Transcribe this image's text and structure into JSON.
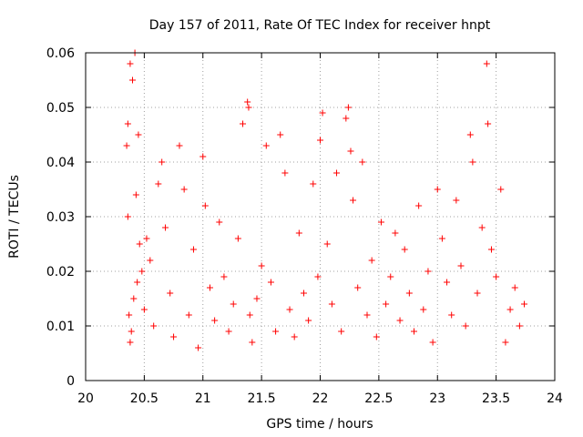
{
  "chart_data": {
    "type": "scatter",
    "title": "Day 157 of 2011, Rate Of TEC Index for receiver hnpt",
    "xlabel": "GPS time / hours",
    "ylabel": "ROTI / TECUs",
    "xlim": [
      20,
      24
    ],
    "ylim": [
      0,
      0.06
    ],
    "x_ticks": [
      20,
      20.5,
      21,
      21.5,
      22,
      22.5,
      23,
      23.5,
      24
    ],
    "x_tick_labels": [
      "20",
      "20.5",
      "21",
      "21.5",
      "22",
      "22.5",
      "23",
      "23.5",
      "24"
    ],
    "y_ticks": [
      0,
      0.01,
      0.02,
      0.03,
      0.04,
      0.05,
      0.06
    ],
    "y_tick_labels": [
      "0",
      "0.01",
      "0.02",
      "0.03",
      "0.04",
      "0.05",
      "0.06"
    ],
    "grid": true,
    "marker": "+",
    "marker_color": "#ff0000",
    "series": [
      {
        "x": [
          20.35,
          20.36,
          20.38,
          20.4,
          20.42,
          20.45,
          20.43,
          20.46,
          20.37,
          20.39,
          20.41,
          20.48,
          20.52,
          20.36,
          20.38,
          20.44,
          20.5,
          20.55,
          20.58,
          20.62,
          20.65,
          20.68,
          20.72,
          20.75,
          20.8,
          20.84,
          20.88,
          20.92,
          20.96,
          21.0,
          21.02,
          21.06,
          21.1,
          21.14,
          21.18,
          21.22,
          21.26,
          21.3,
          21.34,
          21.38,
          21.39,
          21.4,
          21.42,
          21.46,
          21.5,
          21.54,
          21.58,
          21.62,
          21.66,
          21.7,
          21.74,
          21.78,
          21.82,
          21.86,
          21.9,
          21.94,
          21.98,
          22.0,
          22.02,
          22.06,
          22.1,
          22.14,
          22.18,
          22.22,
          22.24,
          22.26,
          22.28,
          22.32,
          22.36,
          22.4,
          22.44,
          22.48,
          22.52,
          22.56,
          22.6,
          22.64,
          22.68,
          22.72,
          22.76,
          22.8,
          22.84,
          22.88,
          22.92,
          22.96,
          23.0,
          23.04,
          23.08,
          23.12,
          23.16,
          23.2,
          23.24,
          23.28,
          23.3,
          23.34,
          23.38,
          23.42,
          23.43,
          23.46,
          23.5,
          23.54,
          23.58,
          23.62,
          23.66,
          23.7,
          23.74
        ],
        "y": [
          0.043,
          0.047,
          0.058,
          0.055,
          0.06,
          0.045,
          0.034,
          0.025,
          0.012,
          0.009,
          0.015,
          0.02,
          0.026,
          0.03,
          0.007,
          0.018,
          0.013,
          0.022,
          0.01,
          0.036,
          0.04,
          0.028,
          0.016,
          0.008,
          0.043,
          0.035,
          0.012,
          0.024,
          0.006,
          0.041,
          0.032,
          0.017,
          0.011,
          0.029,
          0.019,
          0.009,
          0.014,
          0.026,
          0.047,
          0.051,
          0.05,
          0.012,
          0.007,
          0.015,
          0.021,
          0.043,
          0.018,
          0.009,
          0.045,
          0.038,
          0.013,
          0.008,
          0.027,
          0.016,
          0.011,
          0.036,
          0.019,
          0.044,
          0.049,
          0.025,
          0.014,
          0.038,
          0.009,
          0.048,
          0.05,
          0.042,
          0.033,
          0.017,
          0.04,
          0.012,
          0.022,
          0.008,
          0.029,
          0.014,
          0.019,
          0.027,
          0.011,
          0.024,
          0.016,
          0.009,
          0.032,
          0.013,
          0.02,
          0.007,
          0.035,
          0.026,
          0.018,
          0.012,
          0.033,
          0.021,
          0.01,
          0.045,
          0.04,
          0.016,
          0.028,
          0.058,
          0.047,
          0.024,
          0.019,
          0.035,
          0.007,
          0.013,
          0.017,
          0.01,
          0.014
        ]
      }
    ]
  }
}
